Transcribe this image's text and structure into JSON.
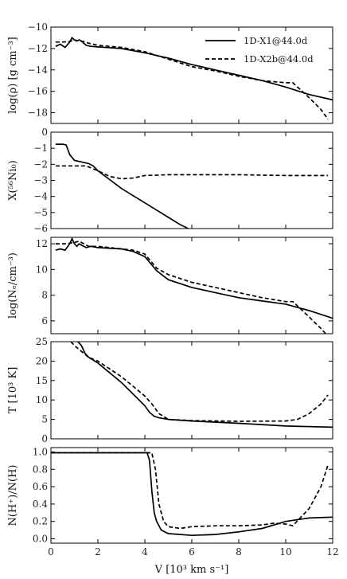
{
  "figure": {
    "xlabel": "V [10³ km s⁻¹]",
    "xlim": [
      0,
      12
    ],
    "xticks": [
      0,
      2,
      4,
      6,
      8,
      10,
      12
    ],
    "line_color": "#000000",
    "background": "#ffffff"
  },
  "legend": {
    "placement": "top-right of first panel",
    "entries": [
      {
        "label": "1D-X1@44.0d",
        "style": "solid"
      },
      {
        "label": "1D-X2b@44.0d",
        "style": "dashed"
      }
    ]
  },
  "chart_data": [
    {
      "type": "line",
      "ylabel": "log(ρ) [g cm⁻³]",
      "ylim": [
        -19,
        -10
      ],
      "yticks": [
        -18,
        -16,
        -14,
        -12,
        -10
      ],
      "series": [
        {
          "name": "1D-X1@44.0d",
          "style": "solid",
          "x": [
            0.2,
            0.4,
            0.6,
            0.8,
            0.9,
            1.0,
            1.1,
            1.2,
            1.3,
            1.4,
            1.5,
            1.7,
            2.0,
            3.0,
            4.0,
            5.0,
            6.0,
            7.0,
            8.0,
            9.0,
            10.0,
            11.0,
            12.0
          ],
          "y": [
            -11.8,
            -11.6,
            -11.9,
            -11.4,
            -11.0,
            -11.2,
            -11.3,
            -11.2,
            -11.3,
            -11.5,
            -11.7,
            -11.8,
            -11.85,
            -12.0,
            -12.4,
            -12.9,
            -13.5,
            -14.0,
            -14.5,
            -15.0,
            -15.6,
            -16.3,
            -16.8
          ]
        },
        {
          "name": "1D-X2b@44.0d",
          "style": "dashed",
          "x": [
            0.2,
            0.5,
            0.8,
            1.0,
            1.2,
            1.4,
            1.6,
            2.0,
            3.0,
            4.0,
            5.0,
            6.0,
            7.0,
            8.0,
            9.0,
            10.0,
            10.3,
            11.0,
            11.5,
            11.8
          ],
          "y": [
            -11.4,
            -11.4,
            -11.35,
            -11.2,
            -11.3,
            -11.35,
            -11.5,
            -11.7,
            -11.9,
            -12.3,
            -13.0,
            -13.7,
            -14.1,
            -14.6,
            -15.0,
            -15.2,
            -15.2,
            -16.6,
            -17.7,
            -18.6
          ]
        }
      ]
    },
    {
      "type": "line",
      "ylabel": "X(⁵⁶Ni₀)",
      "ylim": [
        -6,
        0
      ],
      "yticks": [
        -6,
        -5,
        -4,
        -3,
        -2,
        -1,
        0
      ],
      "series": [
        {
          "name": "1D-X1@44.0d",
          "style": "solid",
          "x": [
            0.2,
            0.5,
            0.65,
            0.8,
            1.0,
            1.3,
            1.6,
            1.8,
            2.0,
            2.5,
            3.0,
            3.5,
            4.0,
            4.5,
            5.0,
            5.5,
            5.85
          ],
          "y": [
            -0.75,
            -0.75,
            -0.8,
            -1.4,
            -1.75,
            -1.85,
            -1.95,
            -2.1,
            -2.4,
            -2.95,
            -3.5,
            -3.95,
            -4.4,
            -4.85,
            -5.3,
            -5.75,
            -6.0
          ]
        },
        {
          "name": "1D-X2b@44.0d",
          "style": "dashed",
          "x": [
            0.2,
            1.0,
            1.5,
            2.0,
            2.5,
            3.0,
            3.5,
            4.0,
            5.0,
            6.0,
            8.0,
            10.0,
            11.8
          ],
          "y": [
            -2.1,
            -2.1,
            -2.1,
            -2.4,
            -2.75,
            -2.9,
            -2.85,
            -2.7,
            -2.65,
            -2.65,
            -2.65,
            -2.7,
            -2.7
          ]
        }
      ]
    },
    {
      "type": "line",
      "ylabel": "log(Nₑ/cm⁻³)",
      "ylim": [
        5,
        12.5
      ],
      "yticks": [
        6,
        8,
        10,
        12
      ],
      "series": [
        {
          "name": "1D-X1@44.0d",
          "style": "solid",
          "x": [
            0.2,
            0.4,
            0.6,
            0.8,
            0.9,
            1.0,
            1.1,
            1.2,
            1.3,
            1.4,
            1.5,
            1.7,
            2.0,
            3.0,
            3.5,
            4.0,
            4.5,
            5.0,
            6.0,
            7.0,
            8.0,
            9.0,
            10.0,
            11.0,
            12.0
          ],
          "y": [
            11.5,
            11.6,
            11.5,
            12.0,
            12.4,
            12.0,
            11.8,
            12.0,
            11.9,
            11.8,
            11.7,
            11.8,
            11.7,
            11.6,
            11.4,
            11.0,
            9.9,
            9.2,
            8.6,
            8.2,
            7.8,
            7.55,
            7.3,
            6.8,
            6.2
          ]
        },
        {
          "name": "1D-X2b@44.0d",
          "style": "dashed",
          "x": [
            0.2,
            0.6,
            1.0,
            1.2,
            1.4,
            1.6,
            2.0,
            3.0,
            3.5,
            4.0,
            4.5,
            5.0,
            6.0,
            7.0,
            8.0,
            9.0,
            10.0,
            10.3,
            11.0,
            11.5,
            11.8
          ],
          "y": [
            12.0,
            12.0,
            12.1,
            12.2,
            12.0,
            11.8,
            11.8,
            11.6,
            11.5,
            11.2,
            10.1,
            9.6,
            9.0,
            8.6,
            8.2,
            7.8,
            7.5,
            7.5,
            6.3,
            5.4,
            4.8
          ]
        }
      ]
    },
    {
      "type": "line",
      "ylabel": "T [10³ K]",
      "ylim": [
        0,
        25
      ],
      "yticks": [
        0,
        5,
        10,
        15,
        20,
        25
      ],
      "series": [
        {
          "name": "1D-X1@44.0d",
          "style": "solid",
          "x": [
            1.15,
            1.3,
            1.45,
            1.6,
            2.0,
            3.0,
            3.5,
            4.0,
            4.2,
            4.4,
            4.6,
            5.0,
            6.0,
            8.0,
            10.0,
            12.0
          ],
          "y": [
            25.0,
            24.0,
            22.0,
            21.0,
            19.5,
            14.5,
            11.5,
            8.5,
            6.8,
            5.8,
            5.4,
            5.0,
            4.6,
            4.0,
            3.3,
            3.0
          ]
        },
        {
          "name": "1D-X2b@44.0d",
          "style": "dashed",
          "x": [
            0.85,
            1.0,
            1.3,
            1.6,
            2.0,
            3.0,
            3.5,
            4.0,
            4.3,
            4.6,
            5.0,
            6.0,
            8.0,
            10.0,
            10.5,
            11.0,
            11.5,
            11.8
          ],
          "y": [
            25.0,
            24.0,
            22.5,
            21.0,
            20.0,
            16.0,
            13.5,
            11.0,
            9.0,
            6.5,
            5.0,
            4.7,
            4.5,
            4.6,
            5.0,
            6.5,
            9.0,
            11.3
          ]
        }
      ]
    },
    {
      "type": "line",
      "ylabel": "N(H⁺)/N(H)",
      "ylim": [
        -0.05,
        1.05
      ],
      "yticks": [
        0.0,
        0.2,
        0.4,
        0.6,
        0.8,
        1.0
      ],
      "series": [
        {
          "name": "1D-X1@44.0d",
          "style": "solid",
          "x": [
            0.0,
            2.0,
            4.1,
            4.2,
            4.3,
            4.4,
            4.5,
            4.7,
            5.0,
            6.0,
            7.0,
            8.0,
            9.0,
            10.0,
            10.5,
            11.0,
            12.0
          ],
          "y": [
            0.99,
            0.99,
            0.99,
            0.9,
            0.55,
            0.3,
            0.2,
            0.1,
            0.06,
            0.04,
            0.05,
            0.08,
            0.12,
            0.2,
            0.22,
            0.24,
            0.25
          ]
        },
        {
          "name": "1D-X2b@44.0d",
          "style": "dashed",
          "x": [
            0.0,
            4.3,
            4.45,
            4.6,
            4.8,
            5.0,
            5.5,
            6.0,
            7.0,
            8.0,
            9.0,
            9.5,
            10.0,
            10.3,
            11.0,
            11.5,
            11.8
          ],
          "y": [
            0.99,
            0.99,
            0.8,
            0.4,
            0.2,
            0.14,
            0.12,
            0.14,
            0.15,
            0.15,
            0.16,
            0.18,
            0.17,
            0.15,
            0.35,
            0.6,
            0.85
          ]
        }
      ]
    }
  ]
}
